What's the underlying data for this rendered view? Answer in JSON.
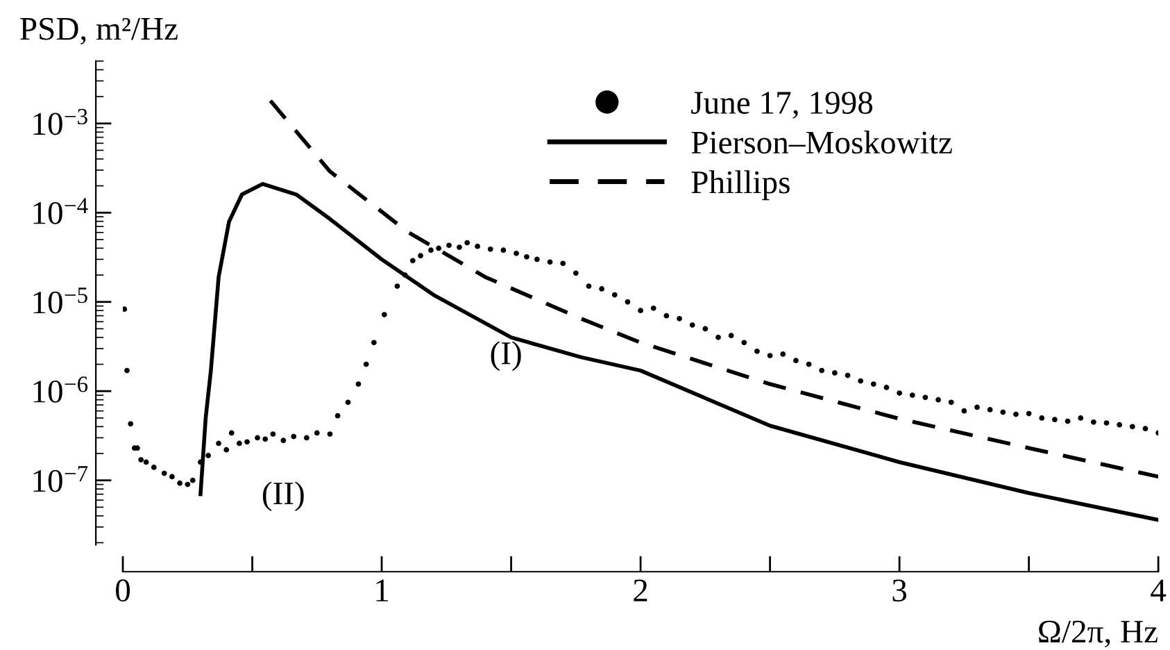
{
  "chart_data": {
    "type": "line",
    "ylabel": "PSD, m²/Hz",
    "xlabel": "Ω/2π, Hz",
    "log": "y",
    "legend": "top right",
    "grid": false,
    "xlim": [
      0,
      4
    ],
    "xticks": [
      0,
      {
        "value": 0.5,
        "label": null
      },
      1,
      {
        "value": 1.5,
        "label": null
      },
      2,
      {
        "value": 2.5,
        "label": null
      },
      3,
      {
        "value": 3.5,
        "label": null
      },
      4
    ],
    "ylim": [
      1.9e-08,
      0.005
    ],
    "yticks": [
      {
        "value": 1e-07,
        "label": "10$^{−7}$"
      },
      {
        "value": 1e-06,
        "label": "10$^{−6}$"
      },
      {
        "value": 1e-05,
        "label": "10$^{−5}$"
      },
      {
        "value": 0.0001,
        "label": "10$^{−4}$"
      },
      {
        "value": 0.001,
        "label": "10$^{−3}$"
      }
    ],
    "series": [
      {
        "name": "June 17, 1998",
        "type": "scatter",
        "marker": "circle",
        "color": "#000000",
        "x": [
          0.006,
          0.016,
          0.03,
          0.045,
          0.056,
          0.07,
          0.09,
          0.12,
          0.16,
          0.19,
          0.22,
          0.25,
          0.27,
          0.3,
          0.33,
          0.37,
          0.4,
          0.42,
          0.45,
          0.48,
          0.52,
          0.55,
          0.58,
          0.62,
          0.66,
          0.71,
          0.75,
          0.8,
          0.83,
          0.87,
          0.91,
          0.94,
          0.97,
          1.01,
          1.06,
          1.09,
          1.12,
          1.15,
          1.19,
          1.22,
          1.26,
          1.3,
          1.33,
          1.37,
          1.42,
          1.47,
          1.52,
          1.56,
          1.6,
          1.65,
          1.7,
          1.75,
          1.8,
          1.85,
          1.9,
          1.95,
          2.0,
          2.05,
          2.1,
          2.15,
          2.2,
          2.25,
          2.3,
          2.35,
          2.4,
          2.45,
          2.5,
          2.55,
          2.6,
          2.65,
          2.7,
          2.75,
          2.8,
          2.85,
          2.9,
          2.95,
          3.0,
          3.05,
          3.1,
          3.15,
          3.2,
          3.25,
          3.3,
          3.35,
          3.4,
          3.45,
          3.5,
          3.55,
          3.6,
          3.65,
          3.7,
          3.75,
          3.8,
          3.85,
          3.9,
          3.95,
          4.0
        ],
        "values": [
          8.3e-06,
          1.7e-06,
          4.3e-07,
          2.3e-07,
          2.3e-07,
          1.7e-07,
          1.6e-07,
          1.4e-07,
          1.2e-07,
          1.1e-07,
          9.3e-08,
          9e-08,
          1e-07,
          1.6e-07,
          1.9e-07,
          2.6e-07,
          2.2e-07,
          3.4e-07,
          2.6e-07,
          2.7e-07,
          3e-07,
          2.9e-07,
          3.3e-07,
          2.8e-07,
          3.1e-07,
          3e-07,
          3.4e-07,
          3.3e-07,
          5.3e-07,
          7.5e-07,
          1.2e-06,
          2e-06,
          3.5e-06,
          7.2e-06,
          1.5e-05,
          2e-05,
          2.9e-05,
          3.3e-05,
          3.8e-05,
          4e-05,
          4.3e-05,
          4.1e-05,
          4.6e-05,
          4.2e-05,
          3.9e-05,
          3.8e-05,
          3.5e-05,
          3.2e-05,
          3e-05,
          2.8e-05,
          2.7e-05,
          2.1e-05,
          1.5e-05,
          1.4e-05,
          1.2e-05,
          1e-05,
          8e-06,
          8.5e-06,
          7e-06,
          6.5e-06,
          5.5e-06,
          5e-06,
          4e-06,
          4.2e-06,
          3.5e-06,
          2.8e-06,
          2.5e-06,
          2.6e-06,
          2.2e-06,
          2e-06,
          1.7e-06,
          1.6e-06,
          1.5e-06,
          1.3e-06,
          1.2e-06,
          1.1e-06,
          9.5e-07,
          9e-07,
          8.5e-07,
          8e-07,
          7.5e-07,
          6e-07,
          6.6e-07,
          6.2e-07,
          5.8e-07,
          5.5e-07,
          5.6e-07,
          5e-07,
          4.8e-07,
          4.6e-07,
          5e-07,
          4.5e-07,
          4.4e-07,
          4.2e-07,
          4e-07,
          3.8e-07,
          3.4e-07
        ]
      },
      {
        "name": "Pierson–Moskowitz",
        "line_style": "solid",
        "color": "#000000",
        "x": [
          0.3,
          0.32,
          0.34,
          0.37,
          0.41,
          0.46,
          0.54,
          0.67,
          0.8,
          1.0,
          1.2,
          1.5,
          1.77,
          2.0,
          2.5,
          3.0,
          3.5,
          4.0
        ],
        "values": [
          7e-08,
          5e-07,
          1.7e-06,
          1.9e-05,
          7.9e-05,
          0.00016,
          0.00021,
          0.00016,
          8.5e-05,
          3e-05,
          1.2e-05,
          4e-06,
          2.4e-06,
          1.7e-06,
          4.1e-07,
          1.6e-07,
          7.2e-08,
          3.6e-08
        ]
      },
      {
        "name": "Phillips",
        "line_style": "dashed",
        "color": "#000000",
        "x": [
          0.57,
          0.8,
          1.1,
          1.4,
          1.77,
          2.0,
          2.5,
          3.0,
          3.5,
          4.0
        ],
        "values": [
          0.0018,
          0.00029,
          6.1e-05,
          1.9e-05,
          6.5e-06,
          3.5e-06,
          1.2e-06,
          4.9e-07,
          2.3e-07,
          1.1e-07
        ]
      }
    ],
    "annotations": [
      "(I)",
      "(II)"
    ]
  }
}
